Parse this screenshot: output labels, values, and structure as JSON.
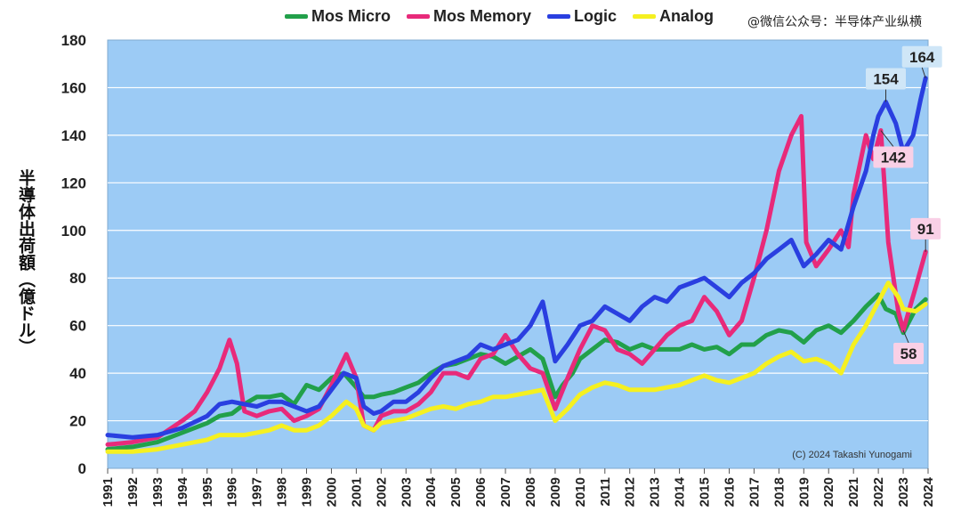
{
  "watermark": "@微信公众号：半导体产业纵横",
  "chart_data": {
    "type": "line",
    "title": "",
    "ylabel": "半導体出荷額（億ドル）",
    "xlabel": "",
    "ylim": [
      0,
      180
    ],
    "yticks": [
      0,
      20,
      40,
      60,
      80,
      100,
      120,
      140,
      160,
      180
    ],
    "xlim": [
      1991,
      2024
    ],
    "xticks": [
      "1991",
      "1992",
      "1993",
      "1994",
      "1995",
      "1996",
      "1997",
      "1998",
      "1999",
      "2000",
      "2001",
      "2002",
      "2003",
      "2004",
      "2005",
      "2006",
      "2007",
      "2008",
      "2009",
      "2010",
      "2011",
      "2012",
      "2013",
      "2014",
      "2015",
      "2016",
      "2017",
      "2018",
      "2019",
      "2020",
      "2021",
      "2022",
      "2023",
      "2024"
    ],
    "grid": "horizontal",
    "legend_position": "top",
    "background_color": "#9ccbf5",
    "copyright": "(C) 2024 Takashi Yunogami",
    "series": [
      {
        "name": "Mos Micro",
        "color": "#22a04a",
        "points": [
          [
            1991,
            8
          ],
          [
            1992,
            9
          ],
          [
            1993,
            11
          ],
          [
            1994,
            15
          ],
          [
            1995,
            19
          ],
          [
            1995.5,
            22
          ],
          [
            1996,
            23
          ],
          [
            1996.5,
            27
          ],
          [
            1997,
            30
          ],
          [
            1997.5,
            30
          ],
          [
            1998,
            31
          ],
          [
            1998.5,
            27
          ],
          [
            1999,
            35
          ],
          [
            1999.5,
            33
          ],
          [
            2000,
            38
          ],
          [
            2000.5,
            40
          ],
          [
            2001,
            34
          ],
          [
            2001.3,
            30
          ],
          [
            2001.7,
            30
          ],
          [
            2002,
            31
          ],
          [
            2002.5,
            32
          ],
          [
            2003,
            34
          ],
          [
            2003.5,
            36
          ],
          [
            2004,
            40
          ],
          [
            2004.5,
            43
          ],
          [
            2005,
            44
          ],
          [
            2005.5,
            46
          ],
          [
            2006,
            48
          ],
          [
            2006.5,
            47
          ],
          [
            2007,
            44
          ],
          [
            2007.5,
            47
          ],
          [
            2008,
            50
          ],
          [
            2008.5,
            46
          ],
          [
            2009,
            30
          ],
          [
            2009.3,
            35
          ],
          [
            2009.7,
            40
          ],
          [
            2010,
            46
          ],
          [
            2010.5,
            50
          ],
          [
            2011,
            54
          ],
          [
            2011.5,
            53
          ],
          [
            2012,
            50
          ],
          [
            2012.5,
            52
          ],
          [
            2013,
            50
          ],
          [
            2013.5,
            50
          ],
          [
            2014,
            50
          ],
          [
            2014.5,
            52
          ],
          [
            2015,
            50
          ],
          [
            2015.5,
            51
          ],
          [
            2016,
            48
          ],
          [
            2016.5,
            52
          ],
          [
            2017,
            52
          ],
          [
            2017.5,
            56
          ],
          [
            2018,
            58
          ],
          [
            2018.5,
            57
          ],
          [
            2019,
            53
          ],
          [
            2019.5,
            58
          ],
          [
            2020,
            60
          ],
          [
            2020.5,
            57
          ],
          [
            2021,
            62
          ],
          [
            2021.5,
            68
          ],
          [
            2022,
            73
          ],
          [
            2022.3,
            67
          ],
          [
            2022.7,
            65
          ],
          [
            2023,
            57
          ],
          [
            2023.5,
            67
          ],
          [
            2023.9,
            71
          ]
        ]
      },
      {
        "name": "Mos Memory",
        "color": "#e82a7a",
        "points": [
          [
            1991,
            10
          ],
          [
            1992,
            11
          ],
          [
            1993,
            13
          ],
          [
            1994,
            20
          ],
          [
            1994.5,
            24
          ],
          [
            1995,
            32
          ],
          [
            1995.5,
            42
          ],
          [
            1995.9,
            54
          ],
          [
            1996.2,
            44
          ],
          [
            1996.5,
            24
          ],
          [
            1997,
            22
          ],
          [
            1997.5,
            24
          ],
          [
            1998,
            25
          ],
          [
            1998.5,
            20
          ],
          [
            1999,
            22
          ],
          [
            1999.5,
            25
          ],
          [
            2000,
            35
          ],
          [
            2000.6,
            48
          ],
          [
            2001,
            38
          ],
          [
            2001.3,
            18
          ],
          [
            2001.7,
            16
          ],
          [
            2002,
            22
          ],
          [
            2002.5,
            24
          ],
          [
            2003,
            24
          ],
          [
            2003.5,
            27
          ],
          [
            2004,
            32
          ],
          [
            2004.5,
            40
          ],
          [
            2005,
            40
          ],
          [
            2005.5,
            38
          ],
          [
            2006,
            46
          ],
          [
            2006.5,
            48
          ],
          [
            2007,
            56
          ],
          [
            2007.5,
            48
          ],
          [
            2008,
            42
          ],
          [
            2008.5,
            40
          ],
          [
            2009,
            25
          ],
          [
            2009.5,
            38
          ],
          [
            2010,
            50
          ],
          [
            2010.5,
            60
          ],
          [
            2011,
            58
          ],
          [
            2011.5,
            50
          ],
          [
            2012,
            48
          ],
          [
            2012.5,
            44
          ],
          [
            2013,
            50
          ],
          [
            2013.5,
            56
          ],
          [
            2014,
            60
          ],
          [
            2014.5,
            62
          ],
          [
            2015,
            72
          ],
          [
            2015.5,
            66
          ],
          [
            2016,
            56
          ],
          [
            2016.5,
            62
          ],
          [
            2017,
            80
          ],
          [
            2017.5,
            100
          ],
          [
            2018,
            125
          ],
          [
            2018.5,
            140
          ],
          [
            2018.9,
            148
          ],
          [
            2019.1,
            95
          ],
          [
            2019.5,
            85
          ],
          [
            2020,
            92
          ],
          [
            2020.5,
            100
          ],
          [
            2020.8,
            93
          ],
          [
            2021,
            115
          ],
          [
            2021.5,
            140
          ],
          [
            2021.8,
            130
          ],
          [
            2022.1,
            142
          ],
          [
            2022.4,
            95
          ],
          [
            2022.8,
            66
          ],
          [
            2023,
            58
          ],
          [
            2023.5,
            76
          ],
          [
            2023.9,
            91
          ]
        ]
      },
      {
        "name": "Logic",
        "color": "#2a3fe0",
        "points": [
          [
            1991,
            14
          ],
          [
            1992,
            13
          ],
          [
            1993,
            14
          ],
          [
            1994,
            17
          ],
          [
            1995,
            22
          ],
          [
            1995.5,
            27
          ],
          [
            1996,
            28
          ],
          [
            1996.5,
            27
          ],
          [
            1997,
            26
          ],
          [
            1997.5,
            28
          ],
          [
            1998,
            28
          ],
          [
            1998.5,
            26
          ],
          [
            1999,
            24
          ],
          [
            1999.5,
            26
          ],
          [
            2000,
            33
          ],
          [
            2000.5,
            40
          ],
          [
            2001,
            38
          ],
          [
            2001.3,
            26
          ],
          [
            2001.7,
            23
          ],
          [
            2002,
            24
          ],
          [
            2002.5,
            28
          ],
          [
            2003,
            28
          ],
          [
            2003.5,
            32
          ],
          [
            2004,
            38
          ],
          [
            2004.5,
            43
          ],
          [
            2005,
            45
          ],
          [
            2005.5,
            47
          ],
          [
            2006,
            52
          ],
          [
            2006.5,
            50
          ],
          [
            2007,
            52
          ],
          [
            2007.5,
            54
          ],
          [
            2008,
            60
          ],
          [
            2008.5,
            70
          ],
          [
            2009,
            45
          ],
          [
            2009.5,
            52
          ],
          [
            2010,
            60
          ],
          [
            2010.5,
            62
          ],
          [
            2011,
            68
          ],
          [
            2011.5,
            65
          ],
          [
            2012,
            62
          ],
          [
            2012.5,
            68
          ],
          [
            2013,
            72
          ],
          [
            2013.5,
            70
          ],
          [
            2014,
            76
          ],
          [
            2014.5,
            78
          ],
          [
            2015,
            80
          ],
          [
            2015.5,
            76
          ],
          [
            2016,
            72
          ],
          [
            2016.5,
            78
          ],
          [
            2017,
            82
          ],
          [
            2017.5,
            88
          ],
          [
            2018,
            92
          ],
          [
            2018.5,
            96
          ],
          [
            2019,
            85
          ],
          [
            2019.5,
            90
          ],
          [
            2020,
            96
          ],
          [
            2020.5,
            92
          ],
          [
            2021,
            110
          ],
          [
            2021.5,
            125
          ],
          [
            2021.8,
            140
          ],
          [
            2022,
            148
          ],
          [
            2022.3,
            154
          ],
          [
            2022.7,
            145
          ],
          [
            2023,
            133
          ],
          [
            2023.4,
            140
          ],
          [
            2023.7,
            155
          ],
          [
            2023.9,
            164
          ]
        ]
      },
      {
        "name": "Analog",
        "color": "#f5f020",
        "points": [
          [
            1991,
            7
          ],
          [
            1992,
            7
          ],
          [
            1993,
            8
          ],
          [
            1994,
            10
          ],
          [
            1995,
            12
          ],
          [
            1995.5,
            14
          ],
          [
            1996,
            14
          ],
          [
            1996.5,
            14
          ],
          [
            1997,
            15
          ],
          [
            1997.5,
            16
          ],
          [
            1998,
            18
          ],
          [
            1998.5,
            16
          ],
          [
            1999,
            16
          ],
          [
            1999.5,
            18
          ],
          [
            2000,
            22
          ],
          [
            2000.6,
            28
          ],
          [
            2001,
            25
          ],
          [
            2001.3,
            18
          ],
          [
            2001.7,
            16
          ],
          [
            2002,
            19
          ],
          [
            2002.5,
            20
          ],
          [
            2003,
            21
          ],
          [
            2003.5,
            23
          ],
          [
            2004,
            25
          ],
          [
            2004.5,
            26
          ],
          [
            2005,
            25
          ],
          [
            2005.5,
            27
          ],
          [
            2006,
            28
          ],
          [
            2006.5,
            30
          ],
          [
            2007,
            30
          ],
          [
            2007.5,
            31
          ],
          [
            2008,
            32
          ],
          [
            2008.5,
            33
          ],
          [
            2009,
            20
          ],
          [
            2009.5,
            25
          ],
          [
            2010,
            31
          ],
          [
            2010.5,
            34
          ],
          [
            2011,
            36
          ],
          [
            2011.5,
            35
          ],
          [
            2012,
            33
          ],
          [
            2012.5,
            33
          ],
          [
            2013,
            33
          ],
          [
            2013.5,
            34
          ],
          [
            2014,
            35
          ],
          [
            2014.5,
            37
          ],
          [
            2015,
            39
          ],
          [
            2015.5,
            37
          ],
          [
            2016,
            36
          ],
          [
            2016.5,
            38
          ],
          [
            2017,
            40
          ],
          [
            2017.5,
            44
          ],
          [
            2018,
            47
          ],
          [
            2018.5,
            49
          ],
          [
            2019,
            45
          ],
          [
            2019.5,
            46
          ],
          [
            2020,
            44
          ],
          [
            2020.5,
            40
          ],
          [
            2021,
            52
          ],
          [
            2021.5,
            60
          ],
          [
            2022,
            70
          ],
          [
            2022.4,
            78
          ],
          [
            2022.8,
            72
          ],
          [
            2023,
            67
          ],
          [
            2023.5,
            66
          ],
          [
            2023.9,
            69
          ]
        ]
      }
    ],
    "annotations": [
      {
        "text": "164",
        "x": 2023.9,
        "y": 164,
        "fill": "#cfe6f7"
      },
      {
        "text": "154",
        "x": 2022.3,
        "y": 154,
        "fill": "#cfe6f7"
      },
      {
        "text": "142",
        "x": 2022.1,
        "y": 142,
        "fill": "#f9d0e6"
      },
      {
        "text": "91",
        "x": 2023.9,
        "y": 91,
        "fill": "#f9d0e6"
      },
      {
        "text": "58",
        "x": 2023.0,
        "y": 58,
        "fill": "#f9d0e6"
      }
    ]
  }
}
